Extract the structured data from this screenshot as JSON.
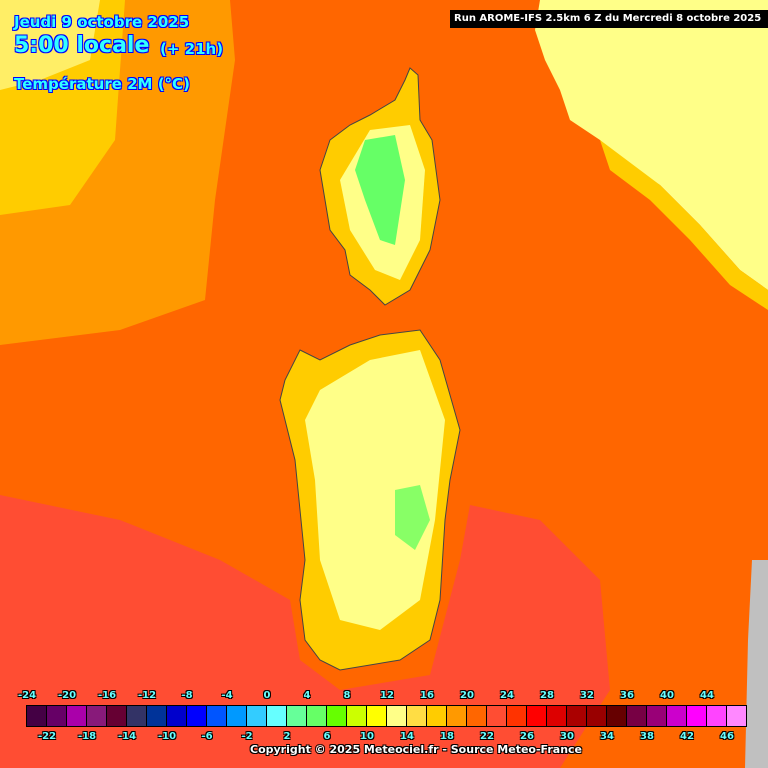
{
  "header": {
    "date": "Jeudi 9 octobre 2025",
    "time": "5:00 locale",
    "lead": "(+ 21h)",
    "parameter": "Température 2M (°C)",
    "run": "Run AROME-IFS 2.5km 6 Z du Mercredi 8 octobre 2025"
  },
  "legend": {
    "unit": "°C",
    "top_labels": [
      "-24",
      "-20",
      "-16",
      "-12",
      "-8",
      "-4",
      "0",
      "4",
      "8",
      "12",
      "16",
      "20",
      "24",
      "28",
      "32",
      "36",
      "40",
      "44"
    ],
    "bottom_labels": [
      "-22",
      "-18",
      "-14",
      "-10",
      "-6",
      "-2",
      "2",
      "6",
      "10",
      "14",
      "18",
      "22",
      "26",
      "30",
      "34",
      "38",
      "42",
      "46"
    ],
    "colors": [
      "#440044",
      "#660066",
      "#aa00aa",
      "#881a7a",
      "#660033",
      "#333366",
      "#003399",
      "#0000cc",
      "#0000ff",
      "#0055ff",
      "#0099ff",
      "#33ccff",
      "#66ffff",
      "#66ff99",
      "#66ff66",
      "#66ff00",
      "#ccff00",
      "#ffff00",
      "#ffff88",
      "#ffdd44",
      "#ffcc00",
      "#ff9900",
      "#ff6600",
      "#ff4d33",
      "#ff3300",
      "#ff0000",
      "#dd0000",
      "#aa0000",
      "#990000",
      "#660000",
      "#770044",
      "#990077",
      "#cc00cc",
      "#ff00ff",
      "#ff44ff",
      "#ff88ff"
    ]
  },
  "map": {
    "regions": [
      "Corse",
      "Sardaigne",
      "Italie"
    ],
    "colors": {
      "sea": "#ff6600",
      "warm_sea": "#ff4d33",
      "cool_sea": "#ff9900",
      "land_warm": "#ffcc00",
      "land_mild": "#ffff88",
      "land_cool": "#66ff66",
      "no_data": "#c0c0c0"
    }
  },
  "footer": {
    "copyright": "Copyright © 2025 Meteociel.fr - Source Meteo-France"
  }
}
